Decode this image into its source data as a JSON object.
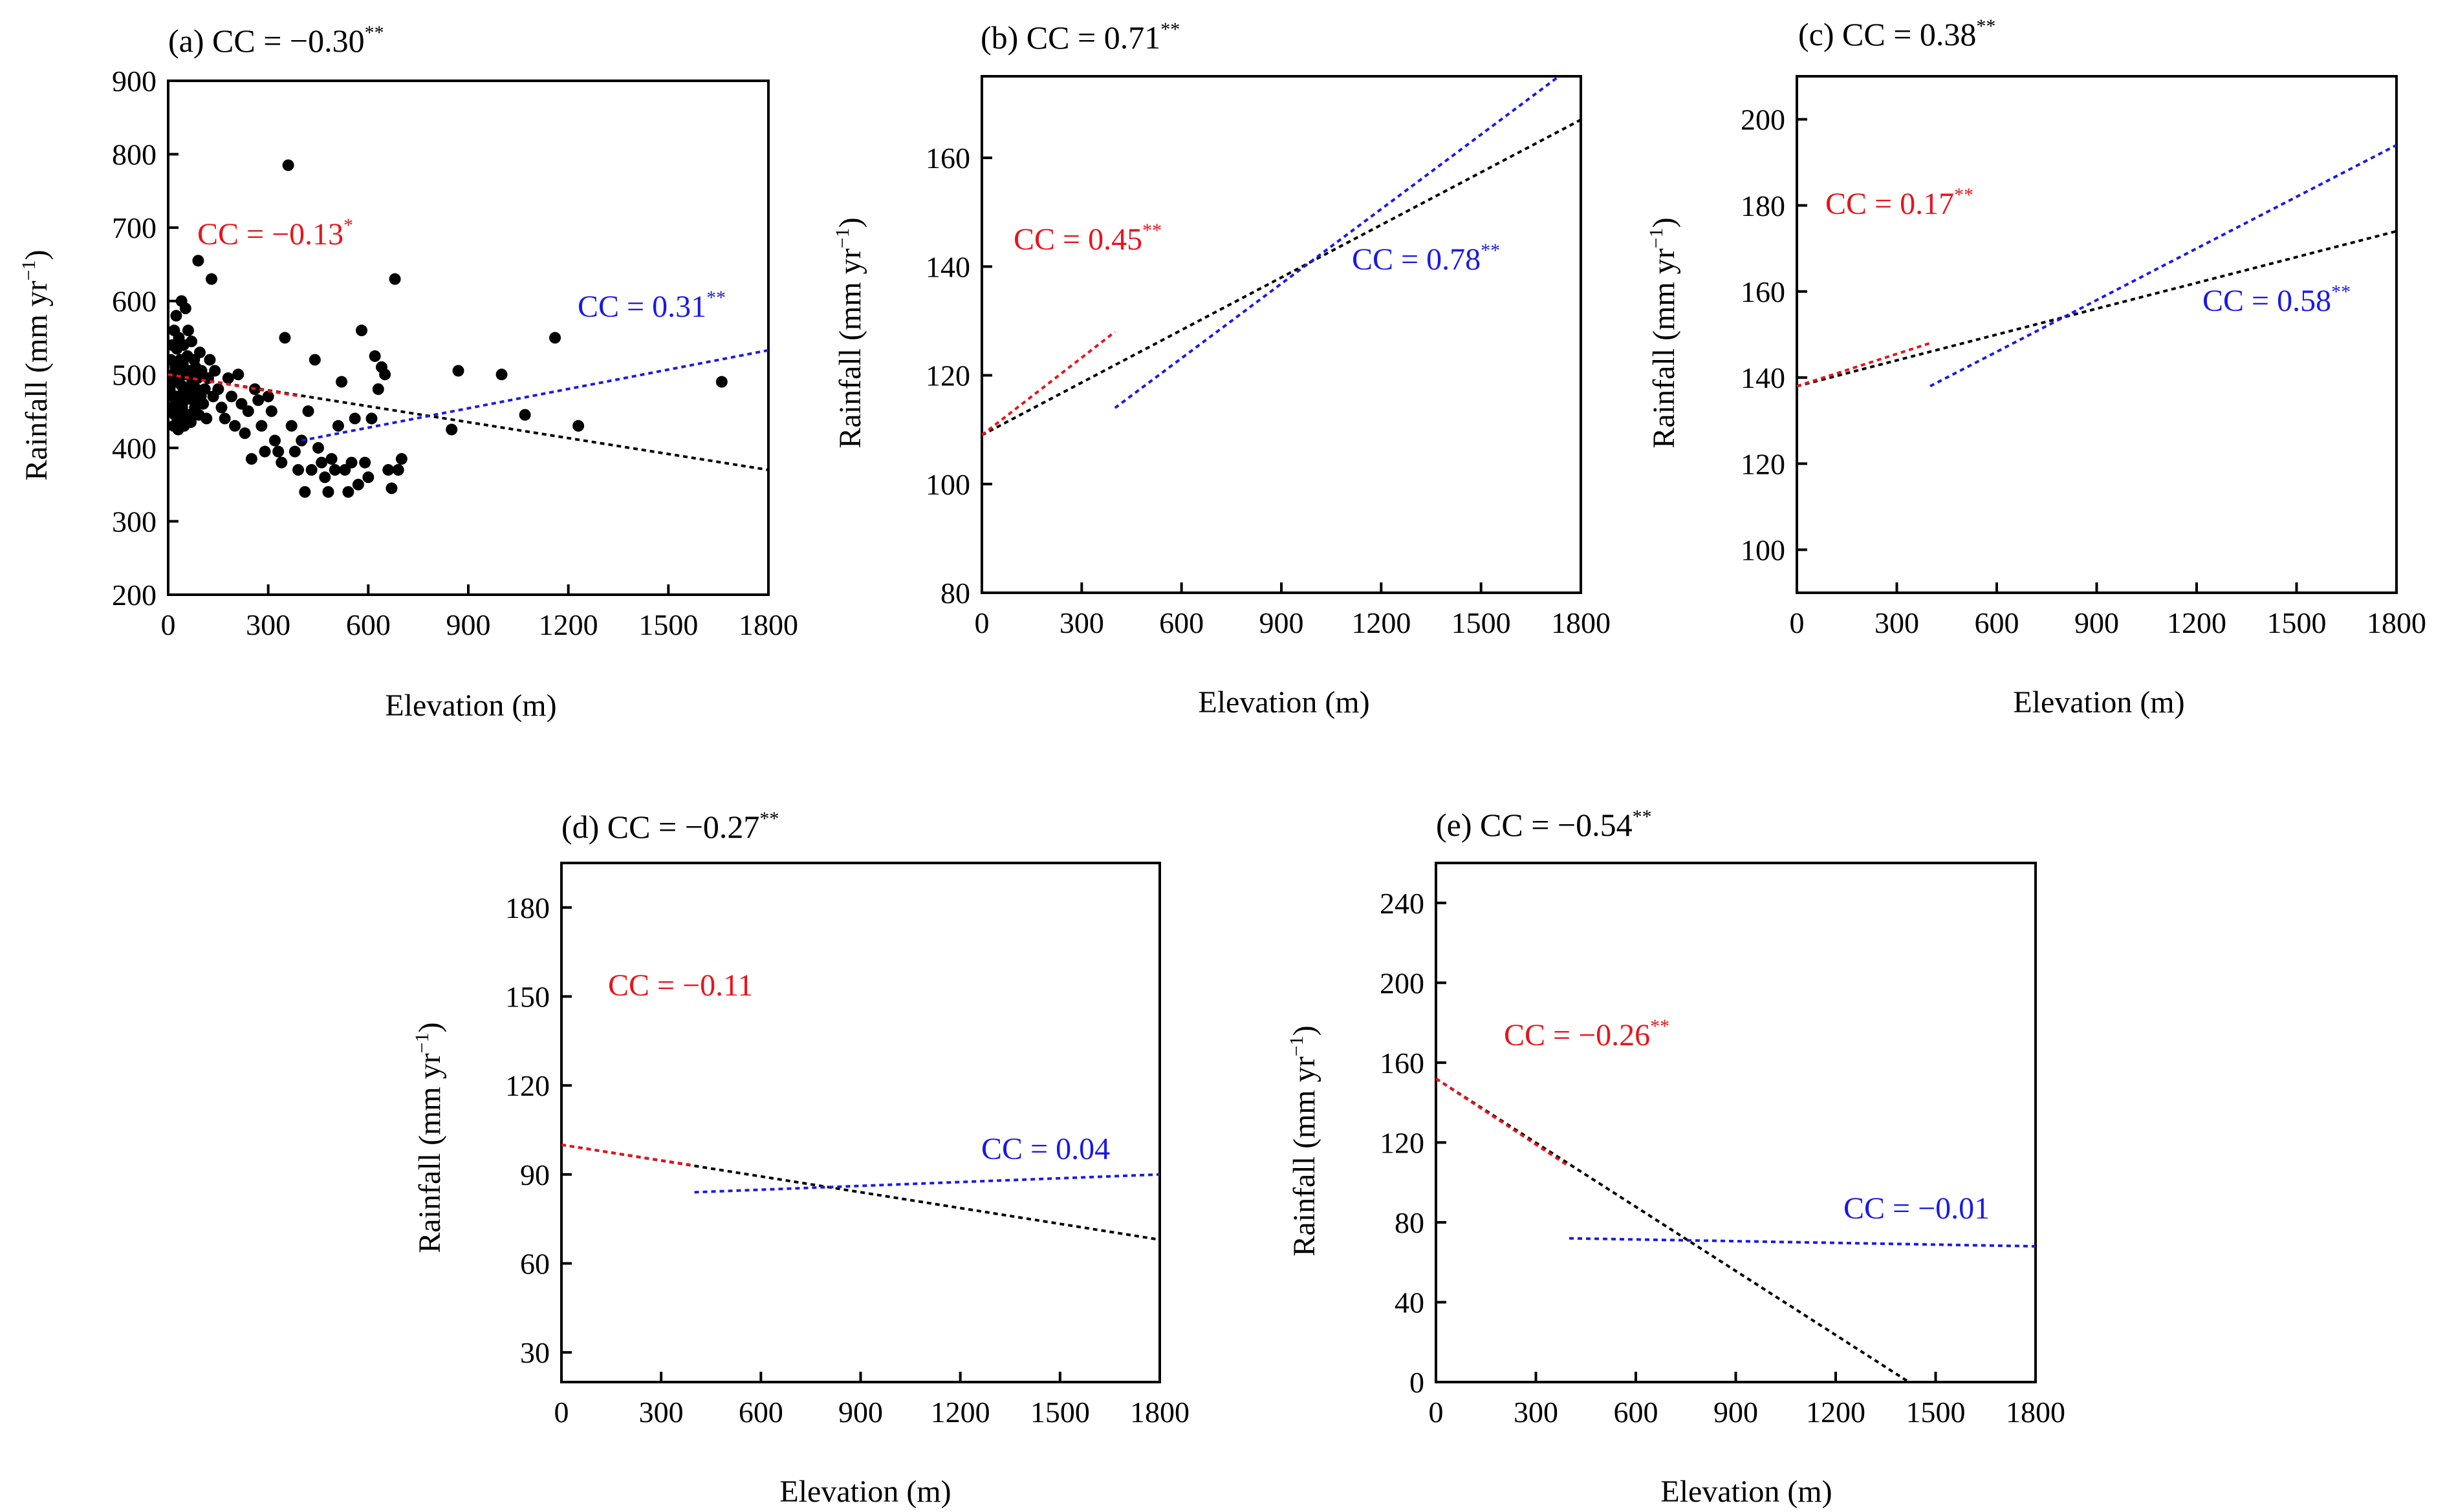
{
  "figure": {
    "panels": [
      {
        "id": "a",
        "title": "(a) CC = −0.30",
        "title_sup": "**",
        "xlabel": "Elevation (m)",
        "ylabel": "Rainfall (mm yr",
        "ylabel_sup": "−1",
        "ylabel_end": ")",
        "cc_low": {
          "text": "CC = −0.13",
          "sup": "*",
          "color": "#e8141c"
        },
        "cc_high": {
          "text": "CC = 0.31",
          "sup": "**",
          "color": "#1a1ae6"
        }
      },
      {
        "id": "b",
        "title": "(b) CC = 0.71",
        "title_sup": "**",
        "xlabel": "Elevation (m)",
        "ylabel": "Rainfall (mm yr",
        "ylabel_sup": "−1",
        "ylabel_end": ")",
        "cc_low": {
          "text": "CC = 0.45",
          "sup": "**",
          "color": "#e8141c"
        },
        "cc_high": {
          "text": "CC = 0.78",
          "sup": "**",
          "color": "#1a1ae6"
        }
      },
      {
        "id": "c",
        "title": "(c) CC = 0.38",
        "title_sup": "**",
        "xlabel": "Elevation (m)",
        "ylabel": "Rainfall (mm yr",
        "ylabel_sup": "−1",
        "ylabel_end": ")",
        "cc_low": {
          "text": "CC = 0.17",
          "sup": "**",
          "color": "#e8141c"
        },
        "cc_high": {
          "text": "CC = 0.58",
          "sup": "**",
          "color": "#1a1ae6"
        }
      },
      {
        "id": "d",
        "title": "(d) CC = −0.27",
        "title_sup": "**",
        "xlabel": "Elevation (m)",
        "ylabel": "Rainfall (mm yr",
        "ylabel_sup": "−1",
        "ylabel_end": ")",
        "cc_low": {
          "text": "CC = −0.11",
          "sup": "",
          "color": "#e8141c"
        },
        "cc_high": {
          "text": "CC = 0.04",
          "sup": "",
          "color": "#1a1ae6"
        }
      },
      {
        "id": "e",
        "title": "(e) CC = −0.54",
        "title_sup": "**",
        "xlabel": "Elevation (m)",
        "ylabel": "Rainfall (mm yr",
        "ylabel_sup": "−1",
        "ylabel_end": ")",
        "cc_low": {
          "text": "CC = −0.26",
          "sup": "**",
          "color": "#e8141c"
        },
        "cc_high": {
          "text": "CC = −0.01",
          "sup": "",
          "color": "#1a1ae6"
        }
      }
    ]
  },
  "chart_data": [
    {
      "type": "scatter",
      "panel": "a",
      "title": "(a) CC = −0.30**",
      "xlabel": "Elevation (m)",
      "ylabel": "Rainfall (mm yr−1)",
      "xlim": [
        0,
        1800
      ],
      "ylim": [
        200,
        900
      ],
      "xticks": [
        0,
        300,
        600,
        900,
        1200,
        1500,
        1800
      ],
      "yticks": [
        200,
        300,
        400,
        500,
        600,
        700,
        800,
        900
      ],
      "grid": false,
      "trend_all": {
        "color": "#000000",
        "x": [
          0,
          1800
        ],
        "y": [
          500,
          370
        ]
      },
      "trend_low": {
        "color": "#e8141c",
        "x": [
          0,
          400
        ],
        "y": [
          500,
          470
        ],
        "label": "CC = −0.13*"
      },
      "trend_high": {
        "color": "#1a1ae6",
        "x": [
          400,
          1800
        ],
        "y": [
          410,
          533
        ],
        "label": "CC = 0.31**"
      },
      "points": {
        "x": [
          5,
          8,
          10,
          12,
          14,
          15,
          16,
          18,
          20,
          20,
          22,
          24,
          25,
          26,
          28,
          30,
          30,
          32,
          34,
          35,
          36,
          38,
          40,
          40,
          42,
          44,
          45,
          46,
          48,
          50,
          50,
          52,
          55,
          58,
          60,
          60,
          62,
          65,
          68,
          70,
          72,
          75,
          78,
          80,
          82,
          85,
          88,
          90,
          92,
          95,
          98,
          100,
          105,
          110,
          115,
          120,
          125,
          130,
          135,
          140,
          150,
          160,
          170,
          180,
          190,
          200,
          210,
          220,
          230,
          240,
          250,
          260,
          270,
          280,
          290,
          300,
          310,
          320,
          330,
          340,
          350,
          360,
          370,
          380,
          390,
          400,
          410,
          420,
          430,
          440,
          450,
          460,
          470,
          480,
          490,
          500,
          510,
          520,
          530,
          540,
          550,
          560,
          570,
          580,
          590,
          600,
          610,
          620,
          630,
          640,
          650,
          660,
          670,
          680,
          690,
          700,
          850,
          870,
          1000,
          1070,
          1160,
          1230,
          1660
        ],
        "y": [
          480,
          520,
          455,
          540,
          470,
          500,
          430,
          560,
          490,
          445,
          510,
          580,
          470,
          535,
          460,
          495,
          425,
          550,
          500,
          470,
          520,
          440,
          485,
          600,
          455,
          515,
          475,
          540,
          430,
          500,
          465,
          590,
          480,
          525,
          445,
          560,
          470,
          505,
          435,
          545,
          490,
          465,
          520,
          455,
          510,
          480,
          495,
          655,
          445,
          530,
          470,
          505,
          460,
          480,
          440,
          495,
          520,
          630,
          470,
          505,
          480,
          455,
          440,
          495,
          470,
          430,
          500,
          460,
          420,
          450,
          385,
          480,
          465,
          430,
          395,
          470,
          450,
          410,
          395,
          380,
          550,
          785,
          430,
          395,
          370,
          410,
          340,
          450,
          370,
          520,
          400,
          380,
          360,
          340,
          385,
          370,
          430,
          490,
          370,
          340,
          380,
          440,
          350,
          560,
          380,
          360,
          440,
          525,
          480,
          510,
          500,
          370,
          345,
          630,
          370,
          385,
          425,
          505,
          500,
          445,
          550,
          430,
          490
        ]
      }
    },
    {
      "type": "scatter",
      "panel": "b",
      "title": "(b) CC = 0.71**",
      "xlabel": "Elevation (m)",
      "ylabel": "Rainfall (mm yr−1)",
      "xlim": [
        0,
        1800
      ],
      "ylim": [
        80,
        175
      ],
      "xticks": [
        0,
        300,
        600,
        900,
        1200,
        1500,
        1800
      ],
      "yticks": [
        80,
        100,
        120,
        140,
        160
      ],
      "grid": false,
      "trend_all": {
        "color": "#000000",
        "x": [
          0,
          1800
        ],
        "y": [
          109,
          167
        ]
      },
      "trend_low": {
        "color": "#e8141c",
        "x": [
          0,
          400
        ],
        "y": [
          109,
          128
        ],
        "label": "CC = 0.45**"
      },
      "trend_high": {
        "color": "#1a1ae6",
        "x": [
          400,
          1800
        ],
        "y": [
          114,
          178
        ],
        "label": "CC = 0.78**"
      }
    },
    {
      "type": "scatter",
      "panel": "c",
      "title": "(c) CC = 0.38**",
      "xlabel": "Elevation (m)",
      "ylabel": "Rainfall (mm yr−1)",
      "xlim": [
        0,
        1800
      ],
      "ylim": [
        90,
        210
      ],
      "xticks": [
        0,
        300,
        600,
        900,
        1200,
        1500,
        1800
      ],
      "yticks": [
        100,
        120,
        140,
        160,
        180,
        200
      ],
      "grid": false,
      "trend_all": {
        "color": "#000000",
        "x": [
          0,
          1800
        ],
        "y": [
          138,
          174
        ]
      },
      "trend_low": {
        "color": "#e8141c",
        "x": [
          0,
          400
        ],
        "y": [
          138,
          148
        ]
      },
      "trend_high": {
        "color": "#1a1ae6",
        "x": [
          400,
          1800
        ],
        "y": [
          138,
          194
        ]
      }
    },
    {
      "type": "scatter",
      "panel": "d",
      "title": "(d) CC = −0.27**",
      "xlabel": "Elevation (m)",
      "ylabel": "Rainfall (mm yr−1)",
      "xlim": [
        0,
        1800
      ],
      "ylim": [
        20,
        195
      ],
      "xticks": [
        0,
        300,
        600,
        900,
        1200,
        1500,
        1800
      ],
      "yticks": [
        30,
        60,
        90,
        120,
        150,
        180
      ],
      "grid": false,
      "trend_all": {
        "color": "#000000",
        "x": [
          0,
          1800
        ],
        "y": [
          100,
          68
        ]
      },
      "trend_low": {
        "color": "#e8141c",
        "x": [
          0,
          400
        ],
        "y": [
          100,
          93
        ]
      },
      "trend_high": {
        "color": "#1a1ae6",
        "x": [
          400,
          1800
        ],
        "y": [
          84,
          90
        ]
      }
    },
    {
      "type": "scatter",
      "panel": "e",
      "title": "(e) CC = −0.54**",
      "xlabel": "Elevation (m)",
      "ylabel": "Rainfall (mm yr−1)",
      "xlim": [
        0,
        1800
      ],
      "ylim": [
        0,
        260
      ],
      "xticks": [
        0,
        300,
        600,
        900,
        1200,
        1500,
        1800
      ],
      "yticks": [
        0,
        40,
        80,
        120,
        160,
        200,
        240
      ],
      "grid": false,
      "trend_all": {
        "color": "#000000",
        "x": [
          0,
          1420
        ],
        "y": [
          152,
          0
        ]
      },
      "trend_low": {
        "color": "#e8141c",
        "x": [
          0,
          400
        ],
        "y": [
          152,
          108
        ]
      },
      "trend_high": {
        "color": "#1a1ae6",
        "x": [
          400,
          1800
        ],
        "y": [
          72,
          68
        ]
      }
    }
  ]
}
